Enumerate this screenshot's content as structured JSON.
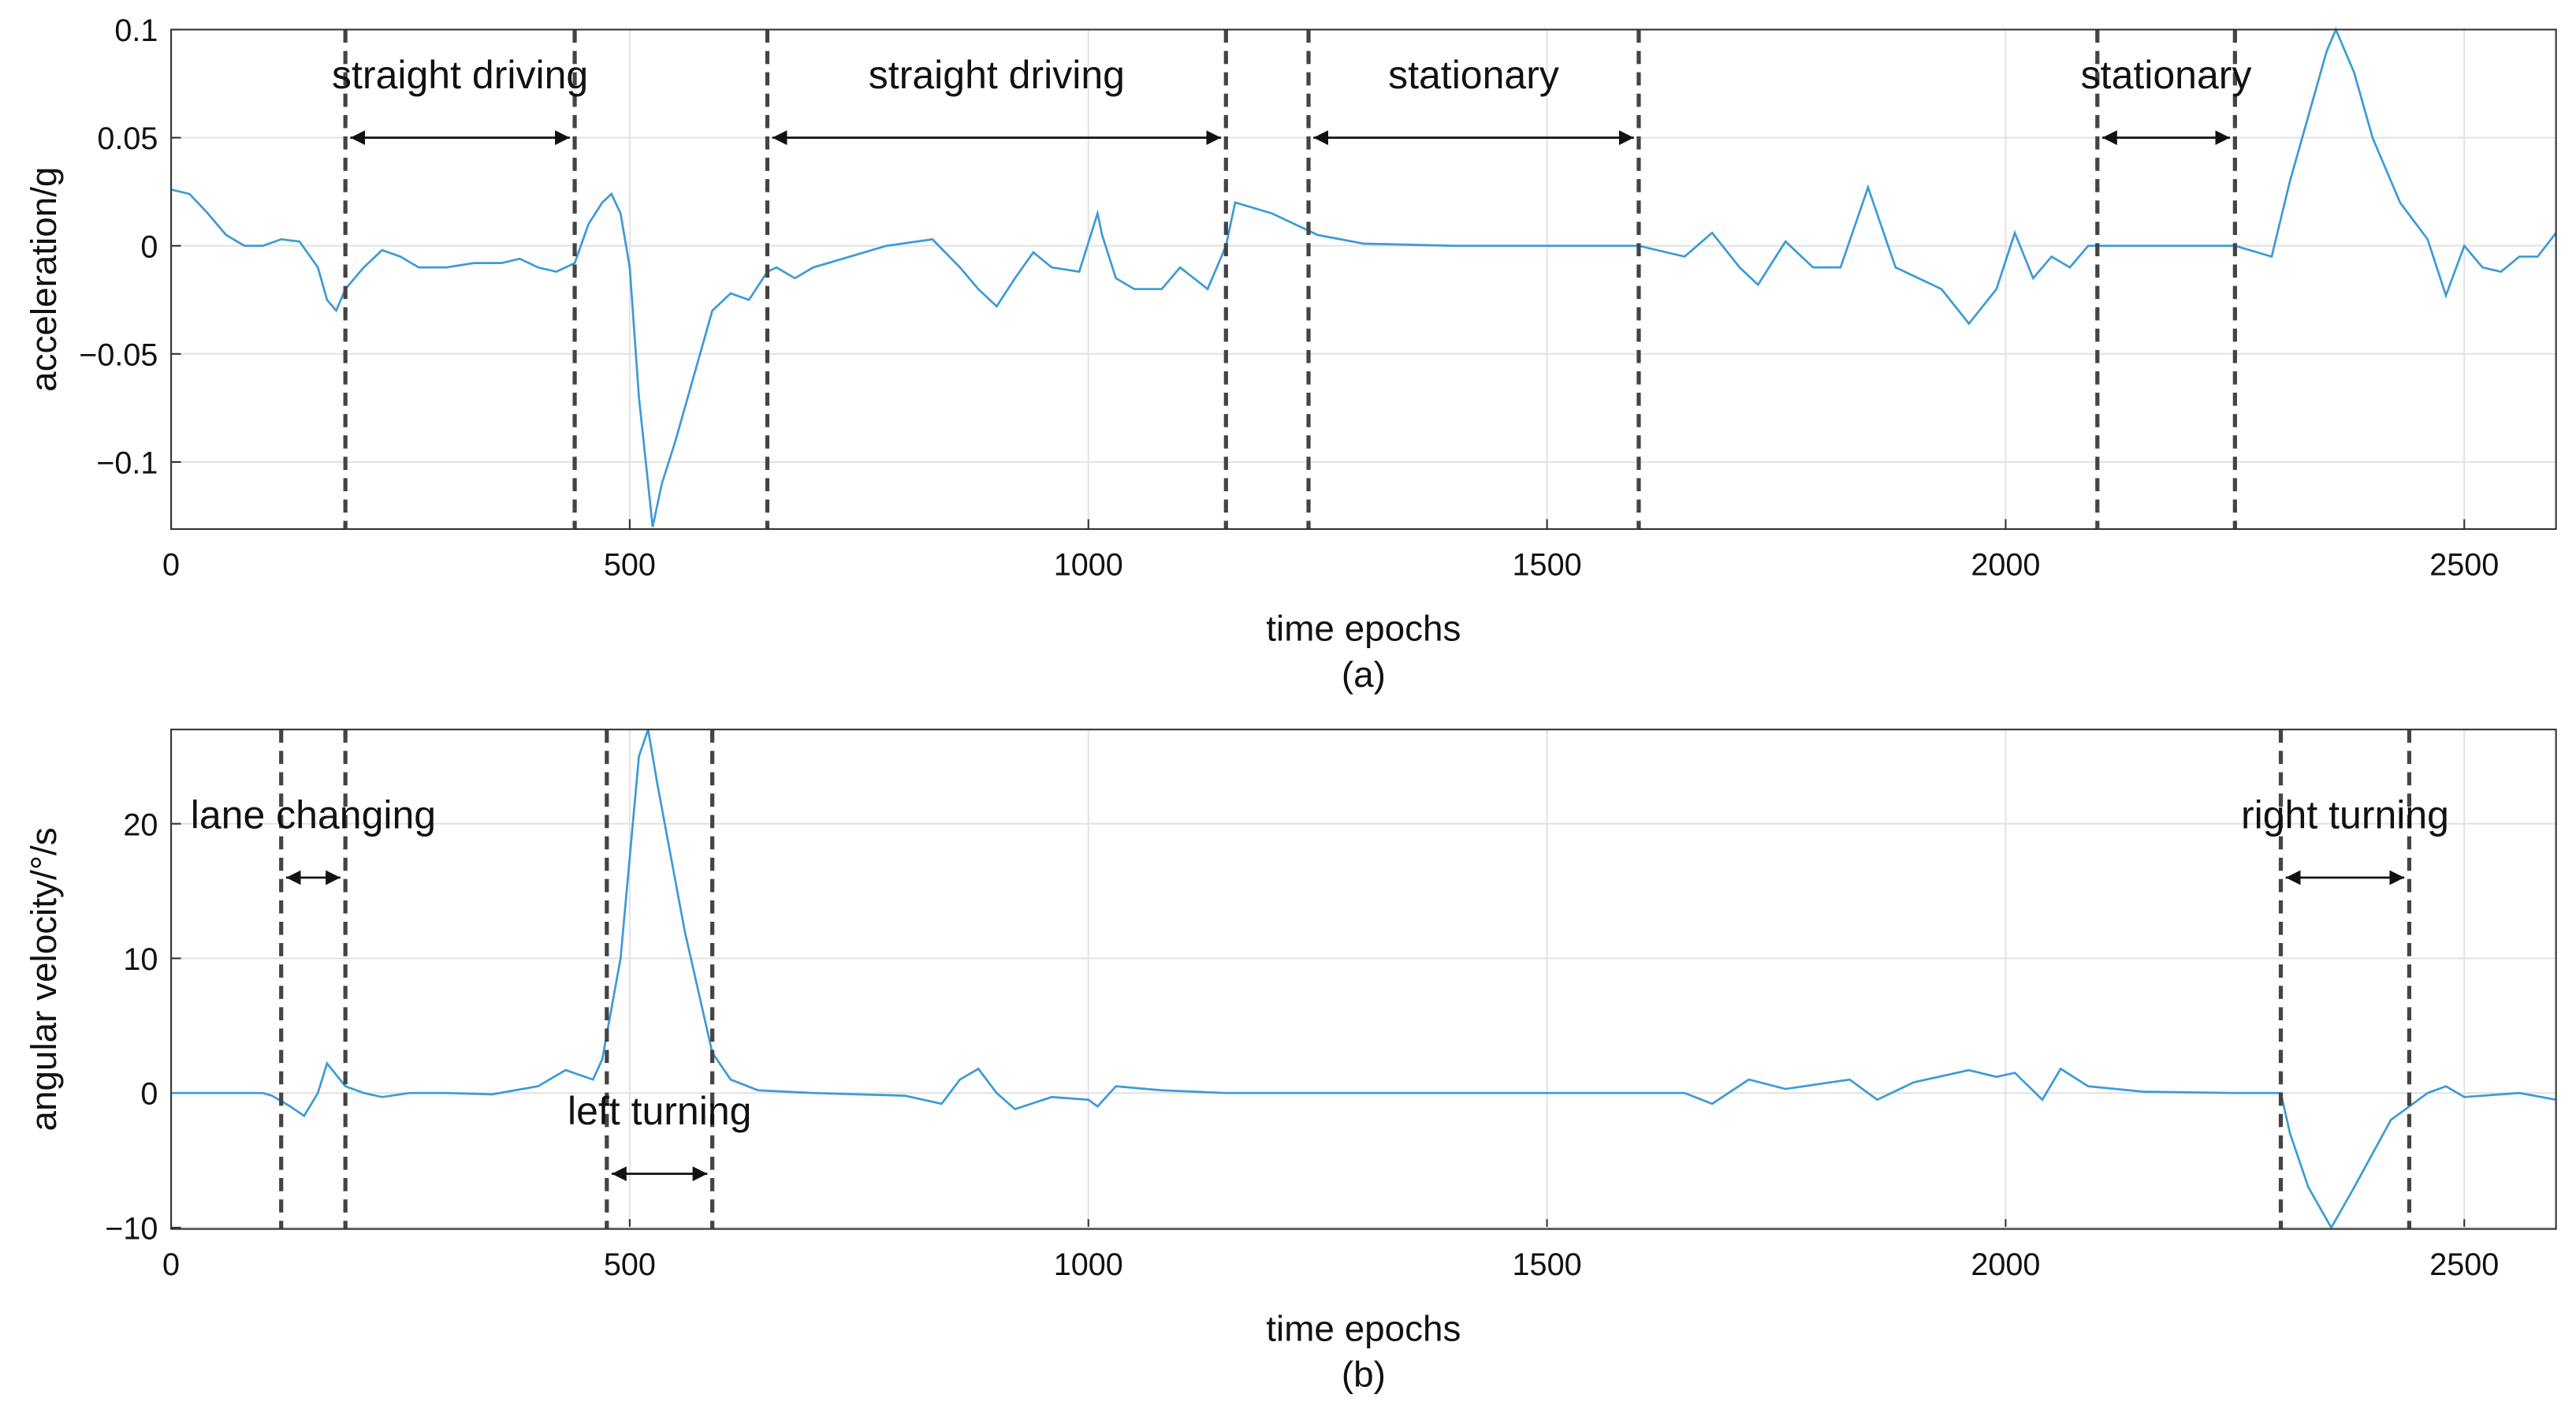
{
  "chart_data": [
    {
      "type": "line",
      "caption": "(a)",
      "x_label": "time epochs",
      "y_label": "acceleration/g",
      "color": "#3d9bd6",
      "grid": true,
      "xlim": [
        0,
        2600
      ],
      "xticks": [
        0,
        500,
        1000,
        1500,
        2000,
        2500
      ],
      "ylim": [
        -0.131,
        0.1
      ],
      "yticks": [
        {
          "value": -0.1,
          "label": "−0.1"
        },
        {
          "value": -0.05,
          "label": "−0.05"
        },
        0,
        0.05,
        0.1
      ],
      "x": [
        0,
        20,
        40,
        60,
        80,
        100,
        120,
        140,
        160,
        170,
        180,
        190,
        210,
        230,
        250,
        270,
        300,
        330,
        360,
        380,
        400,
        420,
        440,
        455,
        470,
        480,
        490,
        500,
        510,
        520,
        525,
        535,
        550,
        570,
        590,
        610,
        630,
        650,
        660,
        680,
        700,
        740,
        780,
        830,
        860,
        880,
        900,
        920,
        940,
        960,
        990,
        1010,
        1015,
        1030,
        1050,
        1080,
        1100,
        1130,
        1150,
        1160,
        1200,
        1250,
        1300,
        1400,
        1500,
        1600,
        1650,
        1680,
        1710,
        1730,
        1760,
        1790,
        1820,
        1850,
        1880,
        1930,
        1960,
        1990,
        2010,
        2030,
        2050,
        2070,
        2090,
        2100,
        2200,
        2250,
        2290,
        2310,
        2330,
        2350,
        2360,
        2380,
        2400,
        2430,
        2460,
        2480,
        2500,
        2520,
        2540,
        2560,
        2580,
        2600
      ],
      "values": [
        0.026,
        0.024,
        0.015,
        0.005,
        0,
        0,
        0.003,
        0.002,
        -0.01,
        -0.025,
        -0.03,
        -0.02,
        -0.01,
        -0.002,
        -0.005,
        -0.01,
        -0.01,
        -0.008,
        -0.008,
        -0.006,
        -0.01,
        -0.012,
        -0.008,
        0.01,
        0.02,
        0.024,
        0.015,
        -0.01,
        -0.07,
        -0.11,
        -0.13,
        -0.11,
        -0.09,
        -0.06,
        -0.03,
        -0.022,
        -0.025,
        -0.012,
        -0.01,
        -0.015,
        -0.01,
        -0.005,
        0,
        0.003,
        -0.01,
        -0.02,
        -0.028,
        -0.015,
        -0.003,
        -0.01,
        -0.012,
        0.015,
        0.005,
        -0.015,
        -0.02,
        -0.02,
        -0.01,
        -0.02,
        0,
        0.02,
        0.015,
        0.005,
        0.001,
        0,
        0,
        0,
        -0.005,
        0.006,
        -0.01,
        -0.018,
        0.002,
        -0.01,
        -0.01,
        0.027,
        -0.01,
        -0.02,
        -0.036,
        -0.02,
        0.006,
        -0.015,
        -0.005,
        -0.01,
        0,
        0,
        0,
        0,
        -0.005,
        0.03,
        0.06,
        0.09,
        0.1,
        0.08,
        0.05,
        0.02,
        0.003,
        -0.023,
        0,
        -0.01,
        -0.012,
        -0.005,
        -0.005,
        0.006
      ],
      "segments": [
        {
          "label": "straight driving",
          "start": 190,
          "end": 440,
          "arrow_y": 0.05
        },
        {
          "label": "straight driving",
          "start": 650,
          "end": 1150,
          "arrow_y": 0.05
        },
        {
          "label": "stationary",
          "start": 1240,
          "end": 1600,
          "arrow_y": 0.05
        },
        {
          "label": "stationary",
          "start": 2100,
          "end": 2250,
          "arrow_y": 0.05
        }
      ]
    },
    {
      "type": "line",
      "caption": "(b)",
      "x_label": "time epochs",
      "y_label": "angular velocity/°/s",
      "color": "#3d9bd6",
      "grid": true,
      "xlim": [
        0,
        2600
      ],
      "xticks": [
        0,
        500,
        1000,
        1500,
        2000,
        2500
      ],
      "ylim": [
        -10.1,
        27
      ],
      "yticks": [
        {
          "value": -10,
          "label": "−10"
        },
        0,
        10,
        20
      ],
      "x": [
        0,
        100,
        110,
        130,
        145,
        160,
        170,
        190,
        210,
        230,
        260,
        300,
        350,
        400,
        430,
        460,
        470,
        490,
        510,
        520,
        530,
        560,
        590,
        610,
        640,
        700,
        800,
        840,
        860,
        880,
        900,
        920,
        960,
        1000,
        1010,
        1030,
        1080,
        1150,
        1300,
        1500,
        1650,
        1680,
        1720,
        1760,
        1800,
        1830,
        1860,
        1900,
        1960,
        1990,
        2010,
        2040,
        2060,
        2090,
        2150,
        2250,
        2300,
        2310,
        2330,
        2355,
        2380,
        2420,
        2460,
        2480,
        2500,
        2560,
        2600
      ],
      "values": [
        0,
        0,
        -0.2,
        -1,
        -1.7,
        0,
        2.2,
        0.5,
        0,
        -0.3,
        0,
        0,
        -0.1,
        0.5,
        1.7,
        1,
        2.5,
        10,
        25,
        27,
        23,
        12,
        3,
        1,
        0.2,
        0,
        -0.2,
        -0.8,
        1,
        1.8,
        0,
        -1.2,
        -0.3,
        -0.5,
        -1,
        0.5,
        0.2,
        0,
        0,
        0,
        0,
        -0.8,
        1,
        0.3,
        0.7,
        1,
        -0.5,
        0.8,
        1.7,
        1.2,
        1.5,
        -0.5,
        1.8,
        0.5,
        0.1,
        0,
        0,
        -3,
        -7,
        -10,
        -7,
        -2,
        0,
        0.5,
        -0.3,
        0,
        -0.5
      ],
      "segments": [
        {
          "label": "lane changing",
          "start": 120,
          "end": 190,
          "arrow_y": 16
        },
        {
          "label": "left turning",
          "start": 475,
          "end": 590,
          "arrow_y": -6
        },
        {
          "label": "right turning",
          "start": 2300,
          "end": 2440,
          "arrow_y": 16
        }
      ]
    }
  ]
}
